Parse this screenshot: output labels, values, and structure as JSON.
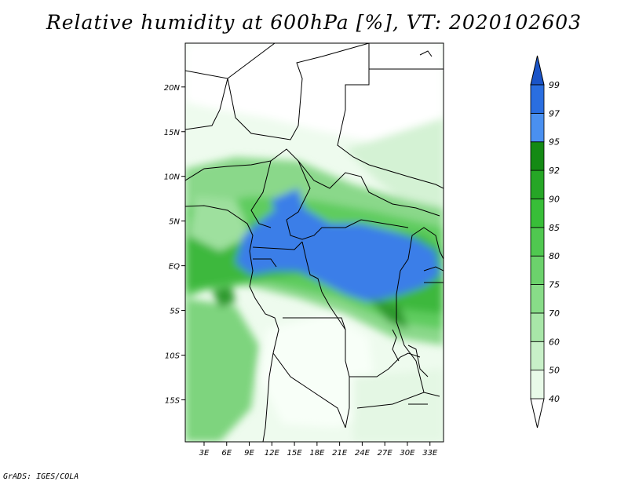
{
  "title": "Relative humidity at 600hPa [%], VT: 2020102603",
  "credit": "GrADS: IGES/COLA",
  "map": {
    "lat_ticks": [
      {
        "label": "20N",
        "lat": 20
      },
      {
        "label": "15N",
        "lat": 15
      },
      {
        "label": "10N",
        "lat": 10
      },
      {
        "label": "5N",
        "lat": 5
      },
      {
        "label": "EQ",
        "lat": 0
      },
      {
        "label": "5S",
        "lat": -5
      },
      {
        "label": "10S",
        "lat": -10
      },
      {
        "label": "15S",
        "lat": -15
      }
    ],
    "lon_ticks": [
      {
        "label": "3E",
        "lon": 3
      },
      {
        "label": "6E",
        "lon": 6
      },
      {
        "label": "9E",
        "lon": 9
      },
      {
        "label": "12E",
        "lon": 12
      },
      {
        "label": "15E",
        "lon": 15
      },
      {
        "label": "18E",
        "lon": 18
      },
      {
        "label": "21E",
        "lon": 21
      },
      {
        "label": "24E",
        "lon": 24
      },
      {
        "label": "27E",
        "lon": 27
      },
      {
        "label": "30E",
        "lon": 30
      },
      {
        "label": "33E",
        "lon": 33
      }
    ],
    "lon_range": [
      0.5,
      34.8
    ],
    "lat_range": [
      -19.7,
      24.9
    ]
  },
  "colorbar": {
    "levels": [
      "40",
      "50",
      "60",
      "70",
      "75",
      "80",
      "85",
      "90",
      "92",
      "95",
      "97",
      "99"
    ],
    "colors": [
      "#ffffff",
      "#e8fae8",
      "#c8f0c8",
      "#a8e6a8",
      "#88dc88",
      "#6cd26c",
      "#50c850",
      "#38be38",
      "#26a626",
      "#148a14",
      "#4a90f0",
      "#2a6ee0",
      "#1a54c8"
    ]
  }
}
